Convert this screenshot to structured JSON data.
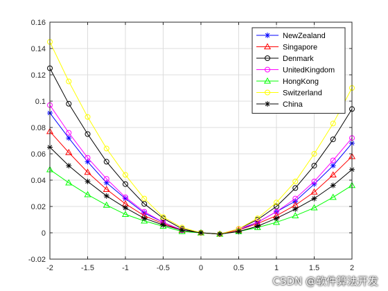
{
  "chart_data": {
    "type": "line",
    "x": [
      -2,
      -1.75,
      -1.5,
      -1.25,
      -1,
      -0.75,
      -0.5,
      -0.25,
      0,
      0.25,
      0.5,
      0.75,
      1,
      1.25,
      1.5,
      1.75,
      2
    ],
    "xlim": [
      -2,
      2
    ],
    "ylim": [
      -0.02,
      0.16
    ],
    "x_ticks": [
      -2,
      -1.5,
      -1,
      -0.5,
      0,
      0.5,
      1,
      1.5,
      2
    ],
    "x_tick_labels": [
      "-2",
      "-1.5",
      "-1",
      "-0.5",
      "0",
      "0.5",
      "1",
      "1.5",
      "2"
    ],
    "y_ticks": [
      -0.02,
      0,
      0.02,
      0.04,
      0.06,
      0.08,
      0.1,
      0.12,
      0.14,
      0.16
    ],
    "y_tick_labels": [
      "-0.02",
      "0",
      "0.02",
      "0.04",
      "0.06",
      "0.08",
      "0.1",
      "0.12",
      "0.14",
      "0.16"
    ],
    "grid": true,
    "legend_position": "top-right",
    "series": [
      {
        "name": "NewZealand",
        "color": "#0000ff",
        "marker": "asterisk",
        "values": [
          0.091,
          0.072,
          0.054,
          0.038,
          0.026,
          0.015,
          0.008,
          0.002,
          0.0,
          -0.001,
          0.002,
          0.008,
          0.016,
          0.024,
          0.037,
          0.051,
          0.068
        ]
      },
      {
        "name": "Singapore",
        "color": "#ff0000",
        "marker": "triangle",
        "values": [
          0.077,
          0.061,
          0.046,
          0.033,
          0.022,
          0.013,
          0.007,
          0.002,
          0.0,
          -0.001,
          0.002,
          0.007,
          0.013,
          0.021,
          0.031,
          0.044,
          0.058
        ]
      },
      {
        "name": "Denmark",
        "color": "#000000",
        "marker": "circle",
        "values": [
          0.125,
          0.098,
          0.075,
          0.054,
          0.037,
          0.022,
          0.011,
          0.003,
          0.0,
          -0.001,
          0.003,
          0.01,
          0.02,
          0.034,
          0.051,
          0.071,
          0.094
        ]
      },
      {
        "name": "UnitedKingdom",
        "color": "#ff00ff",
        "marker": "circle",
        "values": [
          0.097,
          0.076,
          0.057,
          0.041,
          0.027,
          0.016,
          0.008,
          0.002,
          0.0,
          -0.001,
          0.003,
          0.008,
          0.016,
          0.026,
          0.039,
          0.055,
          0.072
        ]
      },
      {
        "name": "HongKong",
        "color": "#00ff00",
        "marker": "triangle",
        "values": [
          0.048,
          0.038,
          0.029,
          0.021,
          0.014,
          0.009,
          0.005,
          0.001,
          0.0,
          -0.001,
          0.001,
          0.004,
          0.008,
          0.013,
          0.019,
          0.027,
          0.036
        ]
      },
      {
        "name": "Switzerland",
        "color": "#ffff00",
        "marker": "circle",
        "values": [
          0.145,
          0.115,
          0.088,
          0.064,
          0.044,
          0.026,
          0.012,
          0.004,
          0.0,
          -0.001,
          0.003,
          0.011,
          0.023,
          0.039,
          0.06,
          0.083,
          0.11
        ]
      },
      {
        "name": "China",
        "color": "#000000",
        "marker": "asterisk",
        "values": [
          0.065,
          0.051,
          0.039,
          0.028,
          0.019,
          0.011,
          0.006,
          0.002,
          0.0,
          -0.001,
          0.001,
          0.005,
          0.011,
          0.018,
          0.026,
          0.036,
          0.048
        ]
      }
    ]
  },
  "watermark": "CSDN @软件算法开发"
}
